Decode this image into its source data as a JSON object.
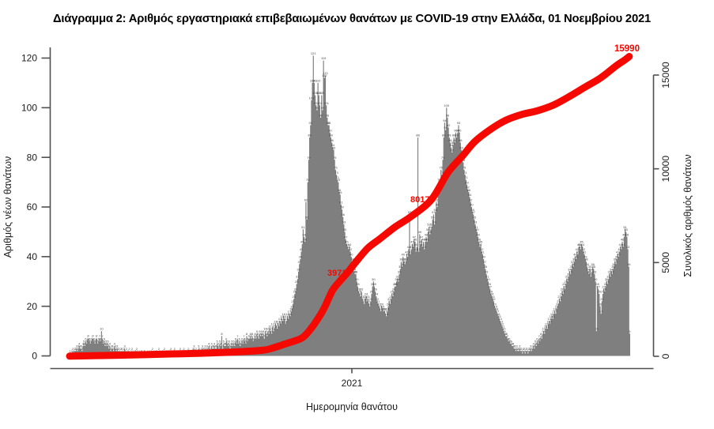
{
  "chart_data": {
    "type": "bar+line",
    "title": "Διάγραμμα 2: Αριθμός εργαστηριακά επιβεβαιωμένων θανάτων με COVID-19 στην Ελλάδα, 01 Νοεμβρίου 2021",
    "xlabel": "Ημερομηνία θανάτου",
    "x_tick_labels": [
      "2021"
    ],
    "ylabel_left": "Αριθμός νέων θανάτων",
    "ylabel_right": "Συνολικός αριθμός θανάτων",
    "y_left_ticks": [
      0,
      20,
      40,
      60,
      80,
      100,
      120
    ],
    "y_right_ticks": [
      0,
      5000,
      10000,
      15000
    ],
    "ylim_left": [
      0,
      120
    ],
    "ylim_right": [
      0,
      15000
    ],
    "legend": "none",
    "grid": false,
    "bar_color": "#7f7f7f",
    "bar_label_color": "#464646",
    "line_color": "#f50800",
    "annotation_color": "#f50800",
    "axis_color": "#4f4f4f",
    "text_color": "#1c1c1c",
    "annotations": [
      {
        "label": "3971"
      },
      {
        "label": "8017"
      },
      {
        "label": "15990"
      }
    ],
    "daily_deaths": [
      1,
      0,
      1,
      2,
      1,
      2,
      2,
      3,
      2,
      3,
      4,
      3,
      3,
      2,
      4,
      5,
      4,
      6,
      5,
      7,
      7,
      6,
      5,
      6,
      7,
      7,
      6,
      5,
      7,
      7,
      5,
      6,
      7,
      6,
      10,
      7,
      5,
      6,
      4,
      5,
      4,
      5,
      3,
      4,
      2,
      3,
      3,
      2,
      4,
      3,
      2,
      3,
      2,
      2,
      1,
      2,
      2,
      1,
      2,
      3,
      1,
      2,
      1,
      1,
      2,
      0,
      1,
      2,
      1,
      0,
      1,
      1,
      2,
      1,
      0,
      1,
      0,
      1,
      1,
      0,
      1,
      1,
      0,
      0,
      1,
      0,
      1,
      0,
      1,
      2,
      0,
      1,
      0,
      1,
      1,
      0,
      2,
      1,
      0,
      0,
      1,
      1,
      2,
      0,
      1,
      0,
      1,
      1,
      0,
      2,
      1,
      0,
      1,
      2,
      1,
      1,
      0,
      1,
      1,
      2,
      1,
      0,
      1,
      2,
      1,
      1,
      0,
      1,
      2,
      1,
      0,
      1,
      1,
      2,
      3,
      1,
      2,
      1,
      1,
      3,
      2,
      1,
      2,
      3,
      2,
      2,
      3,
      2,
      3,
      2,
      4,
      3,
      2,
      4,
      3,
      3,
      4,
      3,
      3,
      5,
      4,
      3,
      5,
      4,
      8,
      3,
      5,
      4,
      4,
      6,
      5,
      4,
      5,
      3,
      4,
      5,
      4,
      5,
      4,
      6,
      5,
      7,
      5,
      6,
      4,
      5,
      6,
      5,
      7,
      6,
      5,
      8,
      6,
      7,
      7,
      8,
      7,
      8,
      6,
      7,
      8,
      7,
      9,
      8,
      7,
      9,
      8,
      9,
      8,
      9,
      7,
      10,
      9,
      8,
      10,
      9,
      11,
      10,
      9,
      12,
      10,
      11,
      13,
      12,
      11,
      13,
      12,
      14,
      13,
      15,
      14,
      16,
      15,
      13,
      14,
      16,
      15,
      17,
      16,
      18,
      19,
      21,
      23,
      25,
      26,
      29,
      31,
      34,
      37,
      39,
      42,
      45,
      51,
      48,
      46,
      62,
      55,
      70,
      79,
      88,
      93,
      103,
      110,
      121,
      110,
      105,
      101,
      99,
      110,
      105,
      101,
      96,
      105,
      99,
      119,
      112,
      113,
      101,
      96,
      93,
      93,
      90,
      88,
      86,
      84,
      83,
      79,
      75,
      73,
      71,
      70,
      66,
      65,
      61,
      59,
      56,
      53,
      50,
      47,
      45,
      44,
      43,
      44,
      42,
      40,
      38,
      36,
      34,
      33,
      33,
      30,
      28,
      26,
      25,
      24,
      26,
      23,
      22,
      21,
      23,
      24,
      22,
      23,
      21,
      20,
      22,
      25,
      28,
      30,
      28,
      26,
      24,
      22,
      21,
      20,
      19,
      18,
      20,
      19,
      18,
      18,
      17,
      16,
      18,
      20,
      22,
      21,
      23,
      25,
      24,
      26,
      28,
      28,
      30,
      31,
      30,
      33,
      35,
      38,
      36,
      40,
      38,
      37,
      38,
      41,
      40,
      43,
      57,
      41,
      43,
      45,
      44,
      47,
      46,
      42,
      44,
      88,
      42,
      49,
      45,
      47,
      44,
      46,
      43,
      46,
      48,
      46,
      50,
      52,
      49,
      51,
      52,
      55,
      57,
      53,
      58,
      62,
      60,
      65,
      70,
      68,
      75,
      73,
      79,
      88,
      94,
      91,
      100,
      96,
      92,
      88,
      86,
      84,
      82,
      85,
      88,
      86,
      90,
      88,
      90,
      93,
      90,
      86,
      83,
      80,
      78,
      75,
      73,
      71,
      69,
      67,
      66,
      64,
      62,
      60,
      58,
      57,
      55,
      53,
      51,
      50,
      48,
      46,
      44,
      45,
      42,
      41,
      39,
      37,
      35,
      33,
      31,
      30,
      28,
      27,
      25,
      24,
      23,
      22,
      20,
      19,
      18,
      17,
      16,
      15,
      14,
      13,
      12,
      11,
      10,
      9,
      8,
      8,
      7,
      6,
      6,
      5,
      5,
      4,
      4,
      3,
      3,
      2,
      3,
      2,
      2,
      3,
      2,
      2,
      1,
      2,
      2,
      1,
      2,
      2,
      1,
      2,
      2,
      3,
      2,
      3,
      4,
      3,
      5,
      4,
      6,
      5,
      7,
      6,
      8,
      7,
      9,
      10,
      9,
      11,
      12,
      11,
      13,
      14,
      13,
      15,
      16,
      15,
      17,
      18,
      17,
      19,
      20,
      21,
      23,
      22,
      24,
      26,
      25,
      28,
      27,
      29,
      31,
      30,
      32,
      34,
      33,
      35,
      37,
      36,
      38,
      40,
      39,
      42,
      41,
      44,
      44,
      43,
      45,
      44,
      42,
      41,
      39,
      38,
      36,
      34,
      33,
      35,
      32,
      34,
      36,
      35,
      33,
      30,
      10,
      28,
      27,
      25,
      20,
      17,
      22,
      25,
      27,
      26,
      28,
      30,
      29,
      31,
      33,
      32,
      34,
      33,
      35,
      36,
      38,
      37,
      39,
      41,
      40,
      42,
      44,
      43,
      46,
      44,
      48,
      51,
      50,
      48,
      43,
      36,
      9
    ],
    "cumulative_line": [
      [
        0,
        10
      ],
      [
        53,
        60
      ],
      [
        113,
        130
      ],
      [
        164,
        200
      ],
      [
        207,
        315
      ],
      [
        220,
        450
      ],
      [
        232,
        640
      ],
      [
        250,
        950
      ],
      [
        258,
        1300
      ],
      [
        267,
        1900
      ],
      [
        275,
        2550
      ],
      [
        284,
        3500
      ],
      [
        292,
        4000
      ],
      [
        301,
        4500
      ],
      [
        309,
        5000
      ],
      [
        322,
        5750
      ],
      [
        335,
        6250
      ],
      [
        352,
        6900
      ],
      [
        369,
        7450
      ],
      [
        391,
        8350
      ],
      [
        409,
        9800
      ],
      [
        425,
        10700
      ],
      [
        438,
        11450
      ],
      [
        455,
        12100
      ],
      [
        472,
        12600
      ],
      [
        489,
        12900
      ],
      [
        506,
        13100
      ],
      [
        523,
        13400
      ],
      [
        540,
        13850
      ],
      [
        557,
        14350
      ],
      [
        574,
        14850
      ],
      [
        591,
        15500
      ],
      [
        600,
        15800
      ],
      [
        605,
        15990
      ]
    ],
    "cumulative_final": 15990
  }
}
